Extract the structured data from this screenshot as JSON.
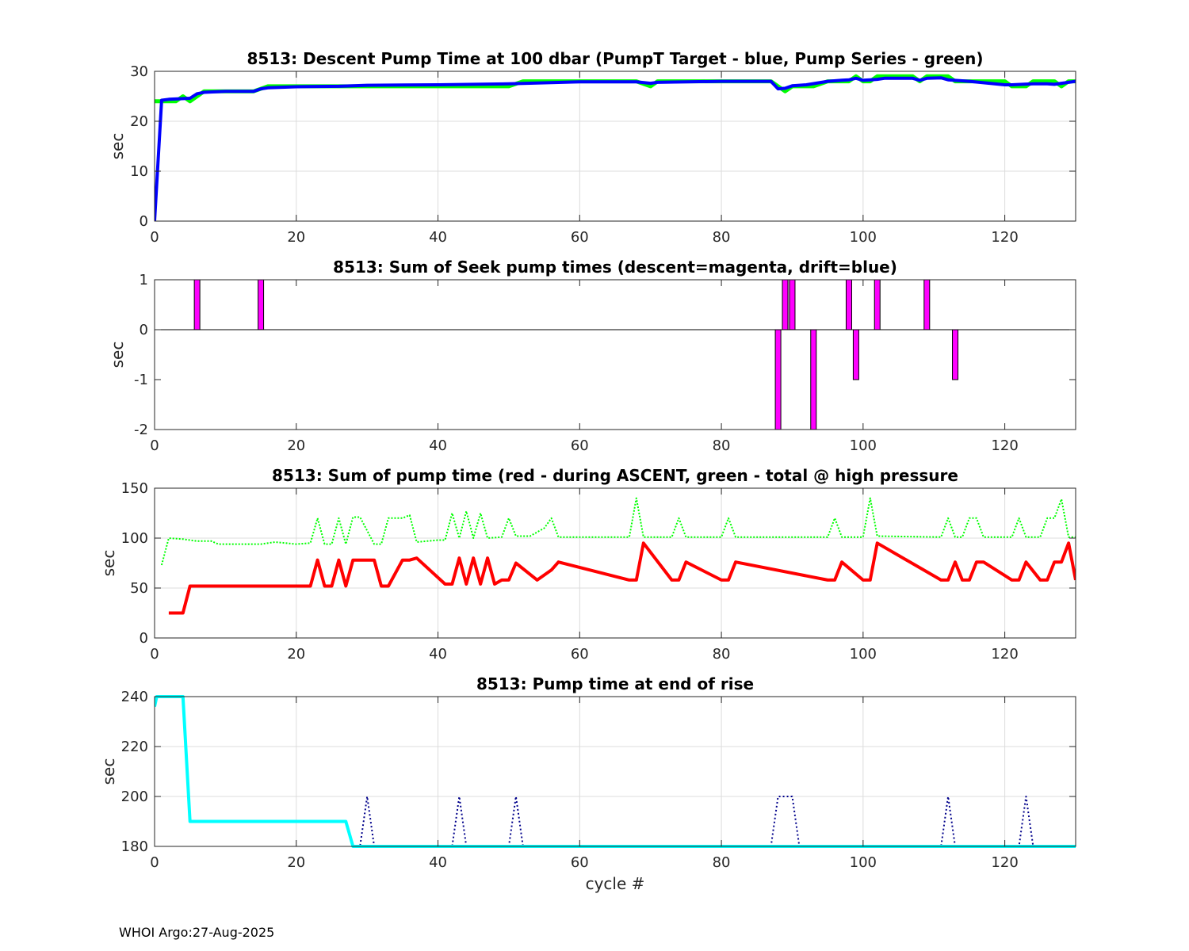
{
  "footer": "WHOI Argo:27-Aug-2025",
  "colors": {
    "green": "#00ff00",
    "blue": "#0000ff",
    "magenta": "#ff00ff",
    "red": "#ff0000",
    "cyan": "#00ffff",
    "dark_blue": "#00008b",
    "grid": "#dcdcdc",
    "axis": "#262626"
  },
  "chart_data": [
    {
      "type": "line",
      "title": "8513: Descent Pump Time at 100 dbar (PumpT Target - blue, Pump Series - green)",
      "xlabel": "",
      "ylabel": "sec",
      "xlim": [
        0,
        130
      ],
      "ylim": [
        0,
        30
      ],
      "xticks": [
        0,
        20,
        40,
        60,
        80,
        100,
        120
      ],
      "yticks": [
        0,
        10,
        20,
        30
      ],
      "grid": true,
      "series": [
        {
          "color": "green",
          "width": 5,
          "dash": "",
          "x": [
            0,
            1,
            3,
            4,
            5,
            7,
            10,
            14,
            16,
            20,
            26,
            30,
            40,
            50,
            52,
            60,
            68,
            70,
            71,
            80,
            87,
            88,
            89,
            90,
            93,
            95,
            97,
            98,
            99,
            100,
            101,
            102,
            103,
            107,
            108,
            109,
            112,
            113,
            114,
            120,
            121,
            122,
            123,
            124,
            127,
            128,
            129,
            130
          ],
          "y": [
            24,
            24,
            24,
            25,
            24,
            26,
            26,
            26,
            27,
            27,
            27,
            27,
            27,
            27,
            28,
            28,
            28,
            27,
            28,
            28,
            28,
            27,
            26,
            27,
            27,
            28,
            28,
            28,
            29,
            28,
            28,
            29,
            29,
            29,
            28,
            29,
            29,
            28,
            28,
            28,
            27,
            27,
            27,
            28,
            28,
            27,
            28,
            28
          ]
        },
        {
          "color": "blue",
          "width": 4,
          "dash": "",
          "x": [
            0,
            1,
            2,
            5,
            6,
            7,
            10,
            14,
            15,
            16,
            20,
            26,
            30,
            40,
            50,
            60,
            68,
            70,
            71,
            80,
            87,
            88,
            89,
            90,
            92,
            95,
            97,
            98,
            99,
            100,
            101,
            102,
            103,
            107,
            108,
            109,
            111,
            112,
            115,
            120,
            121,
            124,
            126,
            127,
            128,
            129,
            130
          ],
          "y": [
            0,
            24.2,
            24.4,
            24.6,
            25.5,
            25.8,
            26,
            26,
            26.5,
            26.7,
            26.9,
            27,
            27.2,
            27.3,
            27.5,
            27.9,
            27.9,
            27.6,
            27.8,
            28,
            28,
            26.5,
            26.6,
            27.1,
            27.3,
            28,
            28.2,
            28.3,
            28.6,
            28.2,
            28.3,
            28.4,
            28.6,
            28.6,
            28.2,
            28.6,
            28.7,
            28.3,
            28,
            27.3,
            27.3,
            27.5,
            27.5,
            27.4,
            27.6,
            27.8,
            28
          ]
        }
      ]
    },
    {
      "type": "bar",
      "title": "8513: Sum of Seek pump times (descent=magenta, drift=blue)",
      "xlabel": "",
      "ylabel": "sec",
      "xlim": [
        0,
        130
      ],
      "ylim": [
        -2,
        1
      ],
      "xticks": [
        0,
        20,
        40,
        60,
        80,
        100,
        120
      ],
      "yticks": [
        -2,
        -1,
        0,
        1
      ],
      "grid": false,
      "zero_line": true,
      "bar_color": "magenta",
      "x": [
        6,
        15,
        88,
        89,
        90,
        93,
        98,
        99,
        102,
        109,
        113
      ],
      "values": [
        1,
        1,
        -2,
        1,
        1,
        -2,
        1,
        -1,
        1,
        1,
        -1
      ]
    },
    {
      "type": "line",
      "title": "8513: Sum of pump time (red - during ASCENT, green - total @ high pressure",
      "xlabel": "",
      "ylabel": "sec",
      "xlim": [
        0,
        130
      ],
      "ylim": [
        0,
        150
      ],
      "xticks": [
        0,
        20,
        40,
        60,
        80,
        100,
        120
      ],
      "yticks": [
        0,
        50,
        100,
        150
      ],
      "grid": true,
      "series": [
        {
          "color": "green",
          "width": 2,
          "dash": "2,2",
          "x": [
            1,
            2,
            4,
            6,
            8,
            9,
            12,
            15,
            17,
            20,
            22,
            23,
            24,
            25,
            26,
            27,
            28,
            29,
            31,
            32,
            33,
            34,
            35,
            36,
            37,
            40,
            41,
            42,
            43,
            44,
            45,
            46,
            47,
            49,
            50,
            51,
            53,
            55,
            56,
            57,
            60,
            67,
            68,
            69,
            73,
            74,
            75,
            80,
            81,
            82,
            86,
            95,
            96,
            97,
            100,
            101,
            102,
            111,
            112,
            113,
            114,
            115,
            116,
            117,
            121,
            122,
            123,
            125,
            126,
            127,
            128,
            129,
            130
          ],
          "y": [
            73,
            100,
            99,
            97,
            97,
            94,
            94,
            94,
            96,
            94,
            95,
            120,
            94,
            94,
            120,
            94,
            121,
            121,
            94,
            94,
            120,
            120,
            120,
            123,
            96,
            98,
            98,
            125,
            100,
            127,
            100,
            125,
            100,
            101,
            120,
            102,
            102,
            110,
            120,
            101,
            101,
            101,
            140,
            101,
            101,
            120,
            101,
            101,
            120,
            101,
            101,
            101,
            120,
            101,
            101,
            140,
            102,
            101,
            120,
            101,
            101,
            120,
            120,
            101,
            101,
            120,
            101,
            101,
            120,
            120,
            139,
            101,
            101
          ]
        },
        {
          "color": "red",
          "width": 4,
          "dash": "",
          "x": [
            2,
            4,
            5,
            6,
            22,
            23,
            24,
            25,
            26,
            27,
            28,
            31,
            32,
            33,
            35,
            36,
            37,
            41,
            42,
            43,
            44,
            45,
            46,
            47,
            48,
            49,
            50,
            51,
            54,
            56,
            57,
            67,
            68,
            69,
            73,
            74,
            75,
            80,
            81,
            82,
            95,
            96,
            97,
            100,
            101,
            102,
            111,
            112,
            113,
            114,
            115,
            116,
            117,
            121,
            122,
            123,
            125,
            126,
            127,
            128,
            129,
            130
          ],
          "y": [
            25,
            25,
            52,
            52,
            52,
            78,
            52,
            52,
            78,
            52,
            78,
            78,
            52,
            52,
            78,
            78,
            80,
            54,
            54,
            80,
            54,
            80,
            54,
            80,
            54,
            58,
            58,
            75,
            58,
            68,
            76,
            58,
            58,
            95,
            58,
            58,
            76,
            58,
            58,
            76,
            58,
            58,
            76,
            58,
            58,
            95,
            58,
            58,
            76,
            58,
            58,
            76,
            76,
            58,
            58,
            76,
            58,
            58,
            76,
            76,
            95,
            58
          ]
        }
      ]
    },
    {
      "type": "line",
      "title": "8513: Pump time at end of rise",
      "xlabel": "cycle #",
      "ylabel": "sec",
      "xlim": [
        0,
        130
      ],
      "ylim": [
        180,
        240
      ],
      "xticks": [
        0,
        20,
        40,
        60,
        80,
        100,
        120
      ],
      "yticks": [
        180,
        200,
        220,
        240
      ],
      "grid": true,
      "series": [
        {
          "color": "dark_blue",
          "width": 2,
          "dash": "2,3",
          "x": [
            28,
            29,
            30,
            31,
            42,
            43,
            44,
            50,
            51,
            52,
            87,
            88,
            90,
            91,
            111,
            112,
            113,
            122,
            123,
            124
          ],
          "y": [
            180,
            180,
            200,
            180,
            180,
            200,
            180,
            180,
            200,
            180,
            180,
            200,
            200,
            180,
            180,
            200,
            180,
            180,
            200,
            180
          ]
        },
        {
          "color": "cyan",
          "width": 4,
          "dash": "",
          "x": [
            0,
            0.3,
            4,
            5,
            27,
            28,
            130
          ],
          "y": [
            236,
            240,
            240,
            190,
            190,
            180,
            180
          ]
        }
      ]
    }
  ]
}
